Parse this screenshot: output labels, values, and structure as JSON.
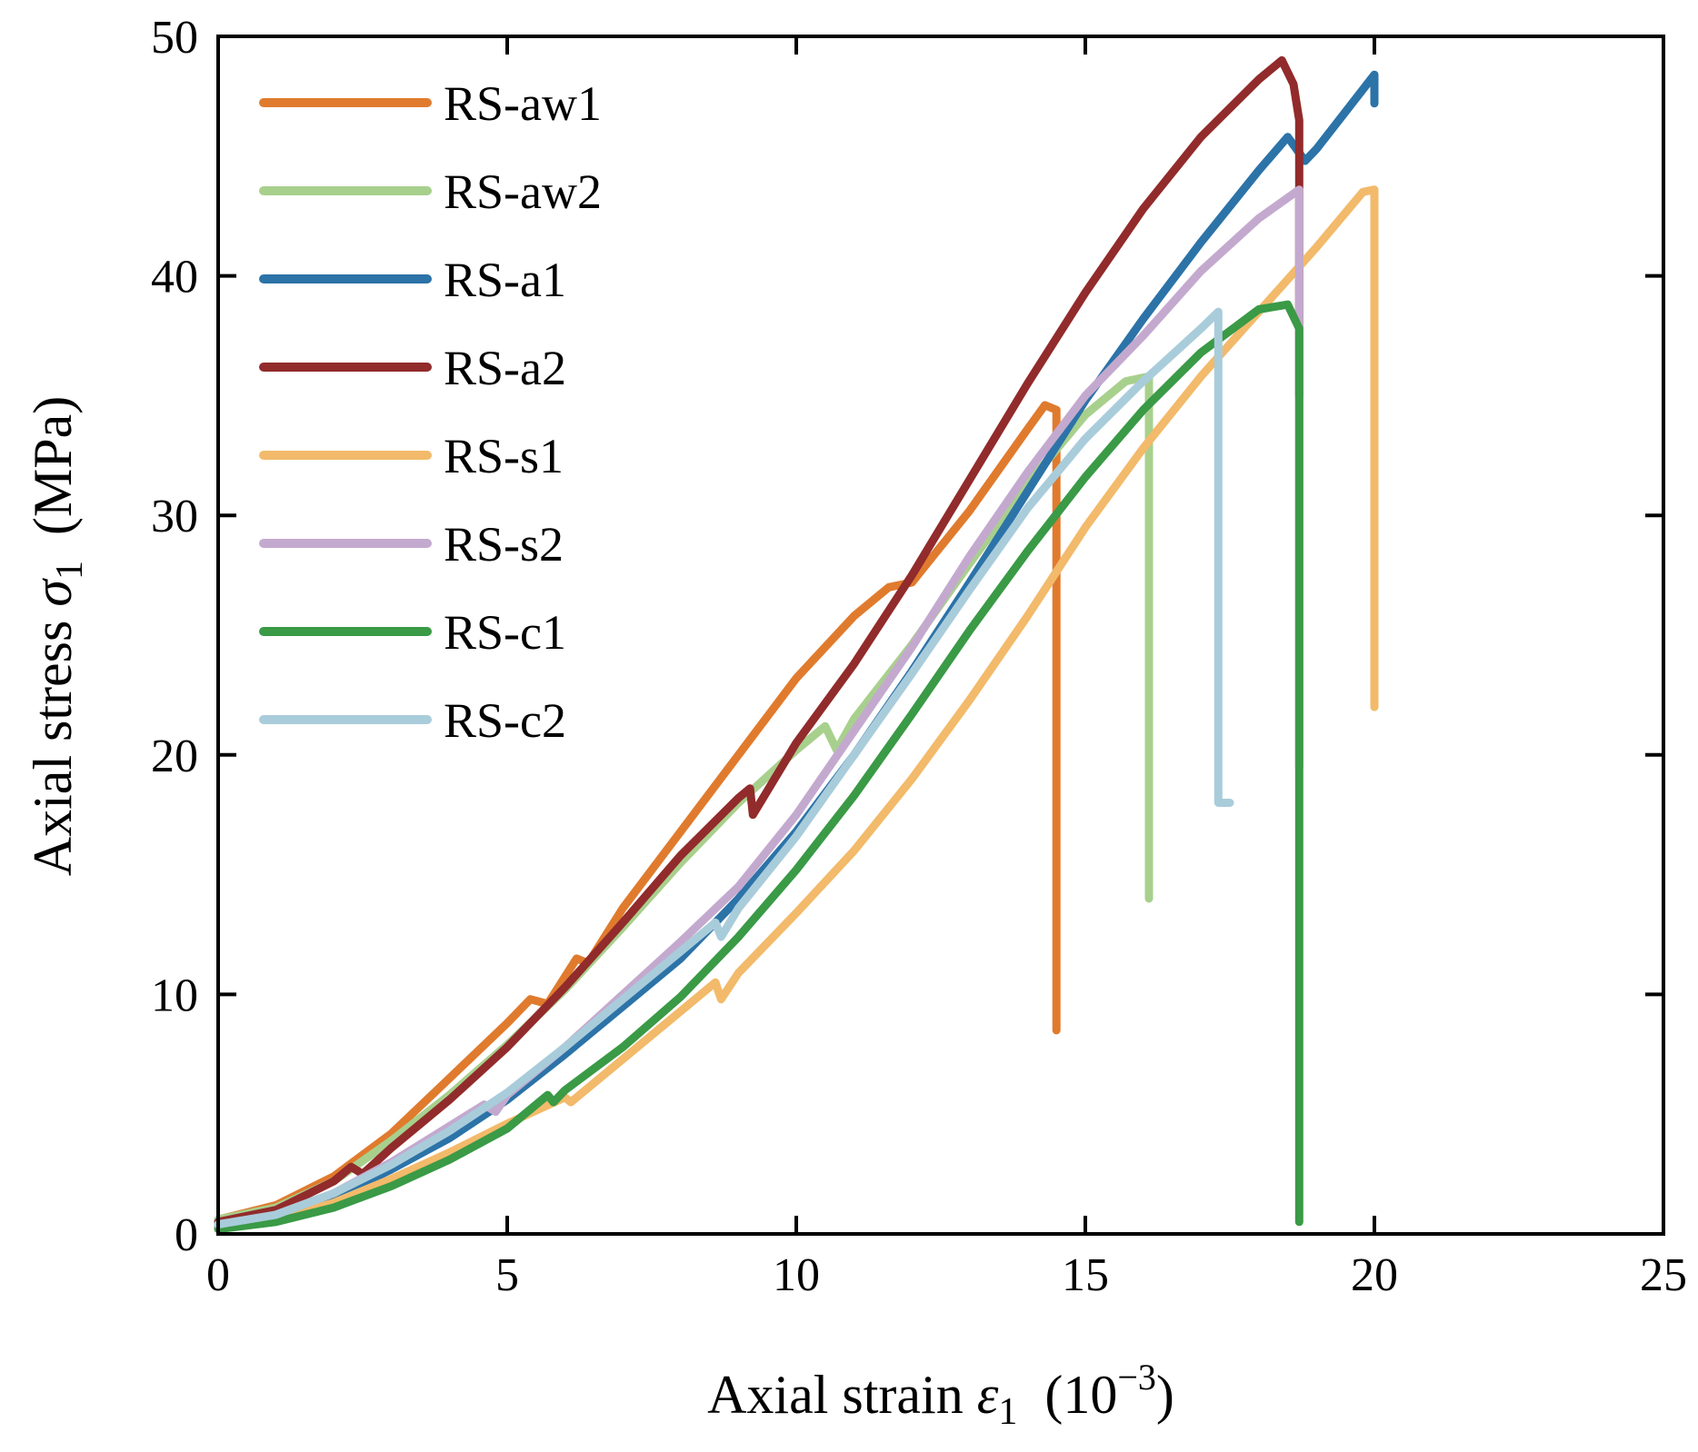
{
  "chart_data": {
    "type": "line",
    "title": "",
    "xlabel": {
      "text": "Axial strain ",
      "symbol": "ε",
      "subscript": "1",
      "unit_open": "(10",
      "unit_exp": "−3",
      "unit_close": ")"
    },
    "ylabel": {
      "text": "Axial stress ",
      "symbol": "σ",
      "subscript": "1",
      "unit": "(MPa)"
    },
    "xlim": [
      0,
      25
    ],
    "ylim": [
      0,
      50
    ],
    "xticks": [
      0,
      5,
      10,
      15,
      20,
      25
    ],
    "yticks": [
      0,
      10,
      20,
      30,
      40,
      50
    ],
    "xtick_labels": [
      "0",
      "5",
      "10",
      "15",
      "20",
      "25"
    ],
    "ytick_labels": [
      "0",
      "10",
      "20",
      "30",
      "40",
      "50"
    ],
    "grid": false,
    "legend_position": "top-left",
    "series": [
      {
        "name": "RS-aw1",
        "color": "#E07B2E",
        "points": [
          [
            0,
            0.6
          ],
          [
            1,
            1.2
          ],
          [
            2,
            2.4
          ],
          [
            3,
            4.2
          ],
          [
            4,
            6.5
          ],
          [
            5,
            8.8
          ],
          [
            5.4,
            9.8
          ],
          [
            5.7,
            9.6
          ],
          [
            6.2,
            11.5
          ],
          [
            6.4,
            11.3
          ],
          [
            7,
            13.6
          ],
          [
            8,
            16.8
          ],
          [
            9,
            20
          ],
          [
            10,
            23.2
          ],
          [
            11,
            25.8
          ],
          [
            11.6,
            27
          ],
          [
            12,
            27.2
          ],
          [
            13,
            30.2
          ],
          [
            14,
            33.6
          ],
          [
            14.3,
            34.6
          ],
          [
            14.5,
            34.4
          ],
          [
            14.5,
            8.5
          ]
        ]
      },
      {
        "name": "RS-aw2",
        "color": "#A8D08D",
        "points": [
          [
            0,
            0.6
          ],
          [
            1,
            1.1
          ],
          [
            2,
            2.2
          ],
          [
            3,
            3.9
          ],
          [
            4,
            5.8
          ],
          [
            5,
            7.9
          ],
          [
            6,
            10.2
          ],
          [
            7,
            12.8
          ],
          [
            8,
            15.5
          ],
          [
            9,
            18
          ],
          [
            10,
            20.2
          ],
          [
            10.5,
            21.2
          ],
          [
            10.7,
            20.2
          ],
          [
            11,
            21.5
          ],
          [
            12,
            24.6
          ],
          [
            13,
            28
          ],
          [
            14,
            31.3
          ],
          [
            15,
            34.2
          ],
          [
            15.7,
            35.6
          ],
          [
            16.1,
            35.8
          ],
          [
            16.1,
            14
          ]
        ]
      },
      {
        "name": "RS-a1",
        "color": "#2C73A8",
        "points": [
          [
            0,
            0.3
          ],
          [
            1,
            0.7
          ],
          [
            2,
            1.5
          ],
          [
            3,
            2.7
          ],
          [
            4,
            4
          ],
          [
            5,
            5.6
          ],
          [
            6,
            7.5
          ],
          [
            7,
            9.5
          ],
          [
            8,
            11.5
          ],
          [
            9,
            14
          ],
          [
            10,
            16.8
          ],
          [
            11,
            20
          ],
          [
            12,
            23.5
          ],
          [
            13,
            27.2
          ],
          [
            14,
            31
          ],
          [
            15,
            34.8
          ],
          [
            16,
            38.2
          ],
          [
            17,
            41.4
          ],
          [
            18,
            44.4
          ],
          [
            18.5,
            45.8
          ],
          [
            18.8,
            44.8
          ],
          [
            19,
            45.3
          ],
          [
            20,
            48.4
          ],
          [
            20,
            47.2
          ]
        ]
      },
      {
        "name": "RS-a2",
        "color": "#922B2B",
        "points": [
          [
            0,
            0.5
          ],
          [
            1,
            1
          ],
          [
            2,
            2.2
          ],
          [
            2.3,
            2.8
          ],
          [
            2.5,
            2.5
          ],
          [
            3,
            3.6
          ],
          [
            4,
            5.6
          ],
          [
            5,
            7.8
          ],
          [
            6,
            10.3
          ],
          [
            7,
            13
          ],
          [
            8,
            15.8
          ],
          [
            9,
            18.2
          ],
          [
            9.2,
            18.6
          ],
          [
            9.25,
            17.5
          ],
          [
            10,
            20.5
          ],
          [
            11,
            23.8
          ],
          [
            12,
            27.5
          ],
          [
            13,
            31.5
          ],
          [
            14,
            35.5
          ],
          [
            15,
            39.3
          ],
          [
            16,
            42.8
          ],
          [
            17,
            45.8
          ],
          [
            18,
            48.2
          ],
          [
            18.4,
            49
          ],
          [
            18.6,
            48
          ],
          [
            18.7,
            46.5
          ],
          [
            18.7,
            35
          ]
        ]
      },
      {
        "name": "RS-s1",
        "color": "#F2BA6A",
        "points": [
          [
            0,
            0.2
          ],
          [
            1,
            0.6
          ],
          [
            2,
            1.3
          ],
          [
            3,
            2.3
          ],
          [
            4,
            3.4
          ],
          [
            5,
            4.6
          ],
          [
            6,
            5.7
          ],
          [
            6.1,
            5.5
          ],
          [
            7,
            7.3
          ],
          [
            8,
            9.3
          ],
          [
            8.6,
            10.5
          ],
          [
            8.7,
            9.8
          ],
          [
            9,
            10.9
          ],
          [
            10,
            13.4
          ],
          [
            11,
            16
          ],
          [
            12,
            19
          ],
          [
            13,
            22.3
          ],
          [
            14,
            25.8
          ],
          [
            15,
            29.5
          ],
          [
            16,
            32.8
          ],
          [
            17,
            35.8
          ],
          [
            18,
            38.5
          ],
          [
            19,
            41.2
          ],
          [
            19.8,
            43.5
          ],
          [
            20,
            43.6
          ],
          [
            20,
            22
          ]
        ]
      },
      {
        "name": "RS-s2",
        "color": "#C4A9CF",
        "points": [
          [
            0,
            0.3
          ],
          [
            1,
            0.8
          ],
          [
            2,
            1.7
          ],
          [
            3,
            3
          ],
          [
            4,
            4.5
          ],
          [
            4.6,
            5.4
          ],
          [
            4.8,
            5.1
          ],
          [
            5,
            5.8
          ],
          [
            6,
            7.8
          ],
          [
            7,
            10
          ],
          [
            8,
            12.2
          ],
          [
            9,
            14.5
          ],
          [
            10,
            17.5
          ],
          [
            11,
            21
          ],
          [
            12,
            24.5
          ],
          [
            13,
            28.3
          ],
          [
            14,
            31.8
          ],
          [
            15,
            35
          ],
          [
            16,
            37.5
          ],
          [
            17,
            40.2
          ],
          [
            18,
            42.4
          ],
          [
            18.7,
            43.6
          ],
          [
            18.7,
            19.5
          ]
        ]
      },
      {
        "name": "RS-c1",
        "color": "#3A9A46",
        "points": [
          [
            0,
            0.2
          ],
          [
            1,
            0.5
          ],
          [
            2,
            1.1
          ],
          [
            3,
            2
          ],
          [
            4,
            3.1
          ],
          [
            5,
            4.4
          ],
          [
            5.7,
            5.8
          ],
          [
            5.8,
            5.5
          ],
          [
            6,
            6
          ],
          [
            7,
            7.8
          ],
          [
            8,
            9.9
          ],
          [
            9,
            12.4
          ],
          [
            10,
            15.2
          ],
          [
            11,
            18.3
          ],
          [
            12,
            21.7
          ],
          [
            13,
            25.2
          ],
          [
            14,
            28.5
          ],
          [
            15,
            31.6
          ],
          [
            16,
            34.4
          ],
          [
            17,
            36.8
          ],
          [
            18,
            38.6
          ],
          [
            18.5,
            38.8
          ],
          [
            18.7,
            37.8
          ],
          [
            18.7,
            0.5
          ]
        ]
      },
      {
        "name": "RS-c2",
        "color": "#A9CCDB",
        "points": [
          [
            0,
            0.4
          ],
          [
            1,
            0.8
          ],
          [
            2,
            1.7
          ],
          [
            3,
            2.9
          ],
          [
            4,
            4.3
          ],
          [
            5,
            5.9
          ],
          [
            6,
            7.8
          ],
          [
            7,
            9.8
          ],
          [
            8,
            11.8
          ],
          [
            8.6,
            13
          ],
          [
            8.7,
            12.4
          ],
          [
            9,
            13.6
          ],
          [
            10,
            16.6
          ],
          [
            11,
            20
          ],
          [
            12,
            23.4
          ],
          [
            13,
            26.9
          ],
          [
            14,
            30.3
          ],
          [
            15,
            33.2
          ],
          [
            16,
            35.6
          ],
          [
            17,
            37.8
          ],
          [
            17.3,
            38.5
          ],
          [
            17.3,
            18
          ],
          [
            17.5,
            18
          ]
        ]
      }
    ]
  }
}
